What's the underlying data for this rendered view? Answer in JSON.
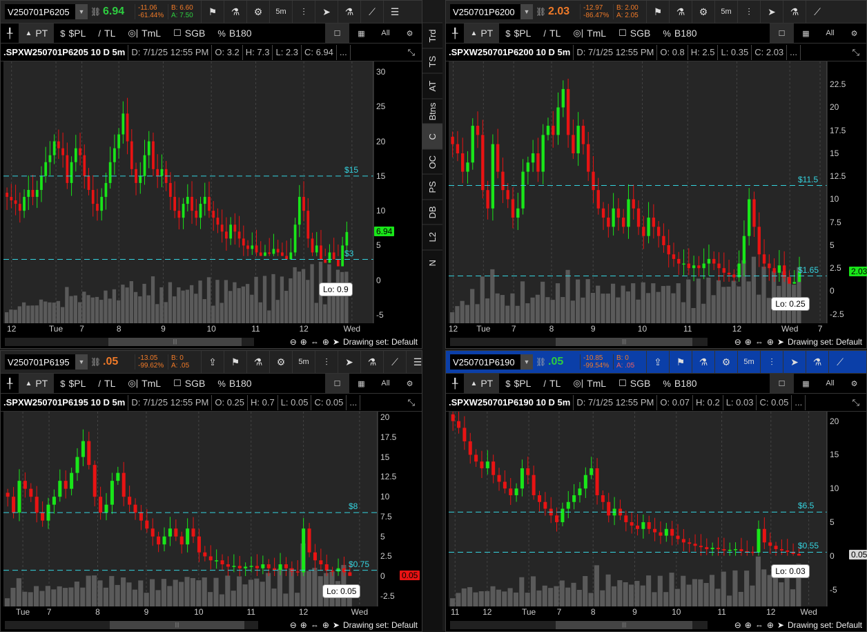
{
  "side_tabs": [
    "Trd",
    "TS",
    "AT",
    "Btns",
    "C",
    "OC",
    "PS",
    "DB",
    "L2",
    "N"
  ],
  "side_active": "C",
  "toolbar": {
    "pin": "pin-icon",
    "tools": [
      {
        "icon": "▲",
        "label": "PT"
      },
      {
        "icon": "$",
        "label": "$PL"
      },
      {
        "icon": "/",
        "label": "TL"
      },
      {
        "icon": "◎|",
        "label": "TmL"
      },
      {
        "icon": "☐",
        "label": "SGB"
      },
      {
        "icon": "%",
        "label": "B180"
      }
    ],
    "right": [
      "☐",
      "▦",
      "All",
      "⚙"
    ]
  },
  "header_icons": [
    "5m"
  ],
  "drawing_set": "Drawing set: Default",
  "colors": {
    "up": "#19e619",
    "down": "#e81313",
    "level": "#35d4e0",
    "volume": "#5a5a5a",
    "plot_bg": "#262626"
  },
  "panels": [
    {
      "symbol": "V250701P6205",
      "last": "6.94",
      "last_color": "#2ecc40",
      "chg": "-11.06",
      "chg_pct": "-61.44%",
      "bid": "B: 6.60",
      "ask": "A: 7.50",
      "ask_color": "#2ecc40",
      "title": ".SPXW250701P6205 10 D 5m",
      "date": "D: 7/1/25 12:55 PM",
      "o": "O: 3.2",
      "h": "H: 7.3",
      "l": "L: 2.3",
      "c": "C: 6.94",
      "more": "...",
      "yticks": [
        "30",
        "25",
        "20",
        "15",
        "10",
        "5",
        "0",
        "-5"
      ],
      "ymax": 31.5,
      "ymin": -6.2,
      "levels": [
        {
          "label": "$15",
          "value": 15
        },
        {
          "label": "$3",
          "value": 3
        }
      ],
      "badge": {
        "text": "6.94",
        "value": 6.94,
        "color": "#19e619"
      },
      "lo": {
        "text": "Lo: 0.9",
        "value": 0.9
      },
      "xlabels": [
        "12",
        "Tue",
        "7",
        "8",
        "9",
        "10",
        "11",
        "12",
        "Wed"
      ],
      "closes": [
        12,
        11.5,
        11,
        10,
        12,
        13,
        12,
        13,
        15,
        17,
        18,
        20,
        19,
        18,
        14,
        17,
        19,
        18,
        15,
        13,
        11,
        10,
        12,
        14,
        17,
        19,
        21,
        24,
        20,
        16,
        14,
        15,
        18,
        20,
        16,
        15,
        16,
        14,
        12,
        10,
        9,
        11,
        12,
        10,
        9,
        11,
        12,
        10,
        9,
        8,
        7,
        6,
        8,
        7,
        6,
        5,
        4.5,
        5,
        4,
        3.5,
        4,
        3.8,
        4.5,
        4,
        3.5,
        3,
        4,
        8,
        12,
        10,
        6,
        4,
        5,
        3,
        2.5,
        4,
        3,
        2,
        5,
        6.94
      ]
    },
    {
      "symbol": "V250701P6200",
      "last": "2.03",
      "last_color": "#f07a28",
      "chg": "-12.97",
      "chg_pct": "-86.47%",
      "bid": "B: 2.00",
      "ask": "A: 2.05",
      "ask_color": "#f07a28",
      "title": ".SPXW250701P6200 10 D 5m",
      "date": "D: 7/1/25 12:55 PM",
      "o": "O: 0.8",
      "h": "H: 2.5",
      "l": "L: 0.35",
      "c": "C: 2.03",
      "more": "...",
      "yticks": [
        "22.5",
        "20",
        "17.5",
        "15",
        "12.5",
        "10",
        "7.5",
        "5",
        "2.5",
        "0",
        "-2.5"
      ],
      "ymax": 25.0,
      "ymin": -3.5,
      "levels": [
        {
          "label": "$11.5",
          "value": 11.5
        },
        {
          "label": "$1.65",
          "value": 1.65
        }
      ],
      "badge": {
        "text": "2.03",
        "value": 2.03,
        "color": "#19e619"
      },
      "lo": {
        "text": "Lo: 0.25",
        "value": 0.25
      },
      "xlabels": [
        "12",
        "Tue",
        "7",
        "8",
        "9",
        "10",
        "11",
        "12",
        "Wed",
        "7"
      ],
      "closes": [
        16,
        15,
        13,
        14,
        18,
        17,
        11,
        9,
        16,
        13,
        11,
        10,
        8,
        9,
        13,
        14,
        15,
        13,
        17,
        18,
        17,
        20,
        22,
        17,
        15,
        18,
        16,
        13,
        11,
        9,
        8,
        7,
        9,
        8,
        7,
        10,
        9,
        7,
        6,
        8,
        7,
        6,
        5,
        4,
        3.5,
        3,
        3,
        2.5,
        2.8,
        2.5,
        3,
        3.5,
        3,
        2.5,
        2,
        1.8,
        1.5,
        3,
        6,
        10,
        7,
        4,
        3,
        2.5,
        2,
        2.8,
        1.5,
        0.8,
        1,
        2.03
      ]
    },
    {
      "symbol": "V250701P6195",
      "last": ".05",
      "last_color": "#f07a28",
      "chg": "-13.05",
      "chg_pct": "-99.62%",
      "bid": "B: 0",
      "ask": "A: .05",
      "ask_color": "#f07a28",
      "title": ".SPXW250701P6195 10 D 5m",
      "date": "D: 7/1/25 12:55 PM",
      "o": "O: 0.25",
      "h": "H: 0.7",
      "l": "L: 0.05",
      "c": "C: 0.05",
      "more": "...",
      "yticks": [
        "20",
        "17.5",
        "15",
        "12.5",
        "10",
        "7.5",
        "5",
        "2.5",
        "0",
        "-2.5"
      ],
      "ymax": 20.7,
      "ymin": -3.8,
      "levels": [
        {
          "label": "$8",
          "value": 8
        },
        {
          "label": "$0.75",
          "value": 0.75
        }
      ],
      "badge": {
        "text": "0.05",
        "value": 0.05,
        "color": "#e81313"
      },
      "lo": {
        "text": "Lo: 0.05",
        "value": 0.05
      },
      "xlabels": [
        "Tue",
        "7",
        "8",
        "9",
        "10",
        "11",
        "12",
        "Wed"
      ],
      "closes": [
        10,
        8,
        12,
        11,
        10,
        8,
        7,
        9,
        10,
        12,
        11,
        13,
        15,
        17,
        14,
        10,
        8,
        9,
        12,
        13,
        10,
        9,
        8,
        7,
        6,
        5,
        4,
        5,
        6,
        5,
        4,
        6,
        5,
        3,
        2.5,
        2,
        2,
        1.5,
        1.2,
        1.3,
        1,
        1.2,
        1.3,
        1,
        1.5,
        1,
        0.8,
        1.5,
        1,
        0.6,
        0.5,
        6,
        3,
        2,
        1.5,
        0.7,
        0.6,
        1,
        0.5,
        0.05
      ]
    },
    {
      "symbol": "V250701P6190",
      "last": ".05",
      "last_color": "#2ecc40",
      "chg": "-10.85",
      "chg_pct": "-99.54%",
      "bid": "B: 0",
      "ask": "A: .05",
      "ask_color": "#f06060",
      "title": ".SPXW250701P6190 10 D 5m",
      "date": "D: 7/1/25 12:55 PM",
      "o": "O: 0.07",
      "h": "H: 0.2",
      "l": "L: 0.03",
      "c": "C: 0.05",
      "more": "...",
      "yticks": [
        "20",
        "15",
        "10",
        "5",
        "0",
        "-5"
      ],
      "ymax": 21.4,
      "ymin": -7.5,
      "levels": [
        {
          "label": "$6.5",
          "value": 6.5
        },
        {
          "label": "$0.55",
          "value": 0.55
        }
      ],
      "badge": {
        "text": "0.05",
        "value": 0.05,
        "color": "#d8d8d8"
      },
      "lo": {
        "text": "Lo: 0.03",
        "value": 0.03
      },
      "xlabels": [
        "11",
        "12",
        "Tue",
        "7",
        "8",
        "9",
        "10",
        "11",
        "12",
        "Wed"
      ],
      "closes": [
        20,
        19,
        17,
        15,
        14,
        13,
        14,
        12,
        11,
        10,
        9,
        10,
        13,
        12,
        9,
        8,
        7,
        6,
        5,
        7,
        8,
        9,
        10,
        12,
        13,
        9,
        8,
        6,
        7,
        6,
        5,
        4.5,
        4,
        5,
        4,
        3.5,
        3,
        4,
        3,
        2.5,
        2,
        1.8,
        1.5,
        1.3,
        1,
        1.2,
        1,
        0.8,
        0.9,
        1,
        0.7,
        0.6,
        0.5,
        4,
        2,
        1.5,
        1,
        0.8,
        0.6,
        0.3,
        0.05
      ]
    }
  ]
}
